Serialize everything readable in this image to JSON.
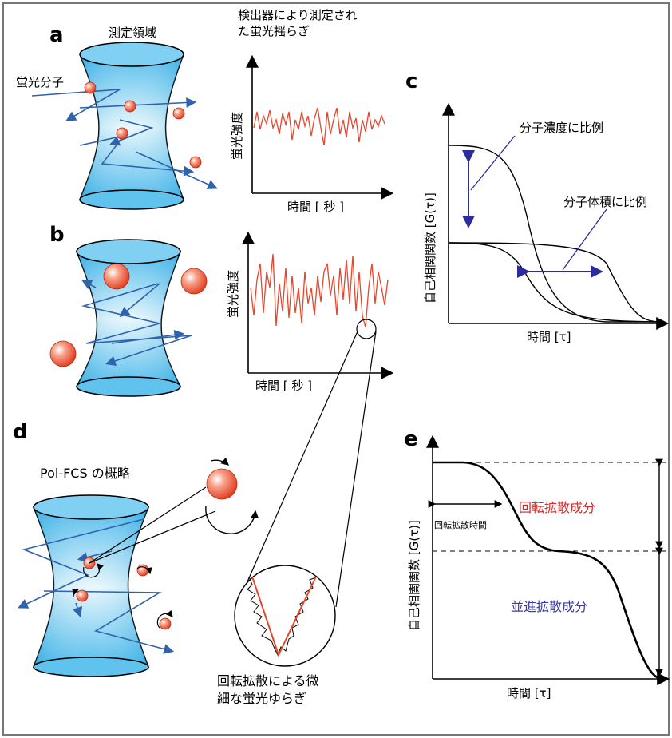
{
  "panels": {
    "a": {
      "letter": "a",
      "volume_label": "測定領域",
      "molecule_label": "蛍光分子",
      "trace_title_line1": "検出器により測定され",
      "trace_title_line2": "た蛍光揺らぎ",
      "ylabel": "蛍光強度",
      "xlabel": "時間 [ 秒 ]"
    },
    "b": {
      "letter": "b",
      "ylabel": "蛍光強度",
      "xlabel": "時間 [ 秒 ]"
    },
    "c": {
      "letter": "c",
      "annotation_concentration": "分子濃度に比例",
      "annotation_volume": "分子体積に比例",
      "ylabel": "自己相関関数 [G(τ)]",
      "xlabel": "時間 [τ]"
    },
    "d": {
      "letter": "d",
      "title": "Pol-FCS の概略",
      "zoom_caption_line1": "回転拡散による微",
      "zoom_caption_line2": "細な蛍光ゆらぎ"
    },
    "e": {
      "letter": "e",
      "rotational_component": "回転拡散成分",
      "rotational_time": "回転拡散時間",
      "translational_component": "並進拡散成分",
      "ylabel": "自己相関関数 [G(τ)]",
      "xlabel": "時間 [τ]"
    }
  },
  "colors": {
    "cylinder": "#3fb5ea",
    "molecule": "#e8452a",
    "trajectory": "#2f63ad",
    "trace": "#e8452a",
    "annotation_arrow": "#2b2b9c",
    "rotational_text": "#d42a2a",
    "translational_text": "#3b3b9e"
  }
}
